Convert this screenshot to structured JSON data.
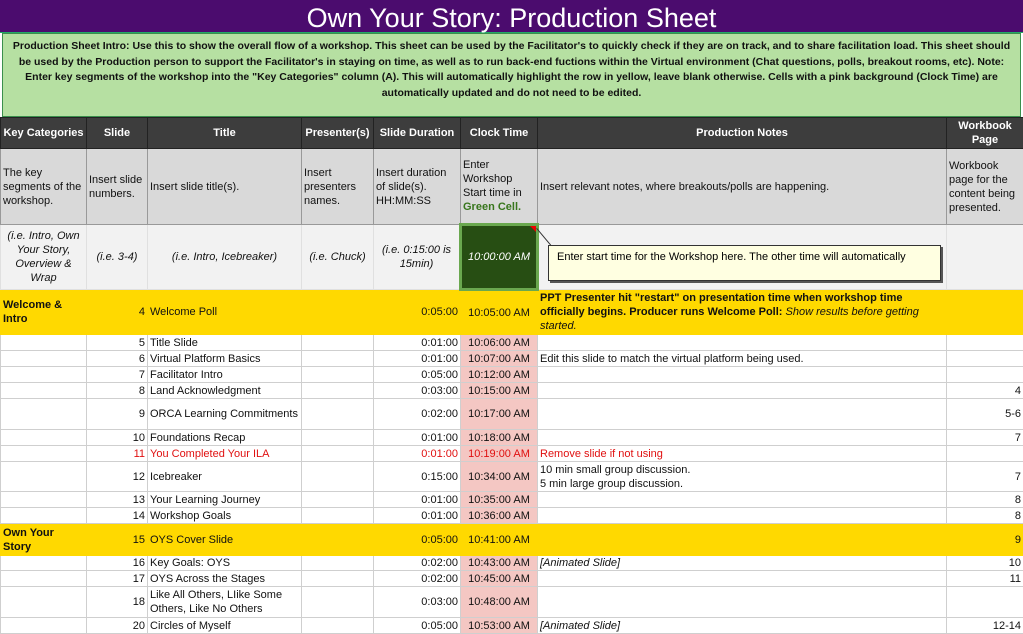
{
  "title": "Own Your Story: Production Sheet",
  "intro": "Production Sheet Intro: Use this to show the overall flow of a workshop. This sheet can be used by the Facilitator's to quickly check if they are on track, and to share facilitation load. This sheet should be used by the Production person to support the Facilitator's in staying on  time, as well as to run back-end fuctions within the Virtual  environment (Chat questions, polls, breakout rooms, etc). Note: Enter key segments of the workshop into the \"Key Categories\" column (A). This will automatically highlight the row in yellow, leave blank otherwise. Cells with a pink background (Clock Time)  are automatically updated and do not need to be edited.",
  "headers": [
    "Key Categories",
    "Slide",
    "Title",
    "Presenter(s)",
    "Slide Duration",
    "Clock Time",
    "Production Notes",
    "Workbook Page"
  ],
  "descriptions": [
    "The key segments of the workshop.",
    "Insert slide numbers.",
    "Insert slide title(s).",
    "Insert presenters names.",
    "Insert duration of slide(s). HH:MM:SS",
    "Enter Workshop Start time in",
    "Insert relevant notes, where breakouts/polls are happening.",
    "Workbook page for the content being presented."
  ],
  "clock_desc_highlight": "Green Cell.",
  "example": [
    "(i.e. Intro, Own Your Story, Overview & Wrap",
    "(i.e. 3-4)",
    "(i.e. Intro, Icebreaker)",
    "(i.e. Chuck)",
    "(i.e. 0:15:00 is 15min)",
    "10:00:00 AM"
  ],
  "tooltip": "Enter start time for the Workshop here. The other time will automatically",
  "colors": {
    "title_bg": "#4b0c6e",
    "intro_bg": "#b6e0a2",
    "header_bg": "#3d3d3d",
    "key_row": "#ffd900",
    "clock_cell": "#f4c7c3",
    "start_cell": "#274e13",
    "warning_text": "#e01010"
  },
  "rows": [
    {
      "cat": "Welcome & Intro",
      "slide": "4",
      "title": "Welcome Poll",
      "pres": "",
      "dur": "0:05:00",
      "clock": "10:05:00 AM",
      "notes_bold": "PPT Presenter hit \"restart\" on presentation time when workshop time officially begins. Producer runs Welcome Poll:",
      "notes_italic": "Show results before getting started.",
      "page": ""
    },
    {
      "cat": "",
      "slide": "5",
      "title": "Title Slide",
      "pres": "",
      "dur": "0:01:00",
      "clock": "10:06:00 AM",
      "notes": "",
      "page": ""
    },
    {
      "cat": "",
      "slide": "6",
      "title": "Virtual Platform Basics",
      "pres": "",
      "dur": "0:01:00",
      "clock": "10:07:00 AM",
      "notes": "Edit this slide to match the virtual platform being used.",
      "page": ""
    },
    {
      "cat": "",
      "slide": "7",
      "title": "Facilitator Intro",
      "pres": "",
      "dur": "0:05:00",
      "clock": "10:12:00 AM",
      "notes": "",
      "page": ""
    },
    {
      "cat": "",
      "slide": "8",
      "title": "Land Acknowledgment",
      "pres": "",
      "dur": "0:03:00",
      "clock": "10:15:00 AM",
      "notes": "",
      "page": "4"
    },
    {
      "cat": "",
      "slide": "9",
      "title": "ORCA Learning Commitments",
      "pres": "",
      "dur": "0:02:00",
      "clock": "10:17:00 AM",
      "notes": "",
      "page": "5-6"
    },
    {
      "cat": "",
      "slide": "10",
      "title": "Foundations Recap",
      "pres": "",
      "dur": "0:01:00",
      "clock": "10:18:00 AM",
      "notes": "",
      "page": "7"
    },
    {
      "cat": "",
      "slide": "11",
      "title": "You Completed Your ILA",
      "pres": "",
      "dur": "0:01:00",
      "clock": "10:19:00 AM",
      "notes": "Remove slide if not using",
      "page": ""
    },
    {
      "cat": "",
      "slide": "12",
      "title": "Icebreaker",
      "pres": "",
      "dur": "0:15:00",
      "clock": "10:34:00 AM",
      "notes": "10 min small group discussion.",
      "notes2": "5 min large group discussion.",
      "page": "7"
    },
    {
      "cat": "",
      "slide": "13",
      "title": "Your Learning Journey",
      "pres": "",
      "dur": "0:01:00",
      "clock": "10:35:00 AM",
      "notes": "",
      "page": "8"
    },
    {
      "cat": "",
      "slide": "14",
      "title": "Workshop Goals",
      "pres": "",
      "dur": "0:01:00",
      "clock": "10:36:00 AM",
      "notes": "",
      "page": "8"
    },
    {
      "cat": "Own Your Story",
      "slide": "15",
      "title": "OYS Cover Slide",
      "pres": "",
      "dur": "0:05:00",
      "clock": "10:41:00 AM",
      "notes": "",
      "page": "9"
    },
    {
      "cat": "",
      "slide": "16",
      "title": "Key Goals: OYS",
      "pres": "",
      "dur": "0:02:00",
      "clock": "10:43:00 AM",
      "notes": "[Animated Slide]",
      "page": "10"
    },
    {
      "cat": "",
      "slide": "17",
      "title": "OYS Across the Stages",
      "pres": "",
      "dur": "0:02:00",
      "clock": "10:45:00 AM",
      "notes": "",
      "page": "11"
    },
    {
      "cat": "",
      "slide": "18",
      "title": "Like All Others, LIike Some Others, Like No Others",
      "pres": "",
      "dur": "0:03:00",
      "clock": "10:48:00 AM",
      "notes": "",
      "page": ""
    },
    {
      "cat": "",
      "slide": "20",
      "title": "Circles of Myself",
      "pres": "",
      "dur": "0:05:00",
      "clock": "10:53:00 AM",
      "notes": "[Animated Slide]",
      "page": "12-14"
    }
  ]
}
